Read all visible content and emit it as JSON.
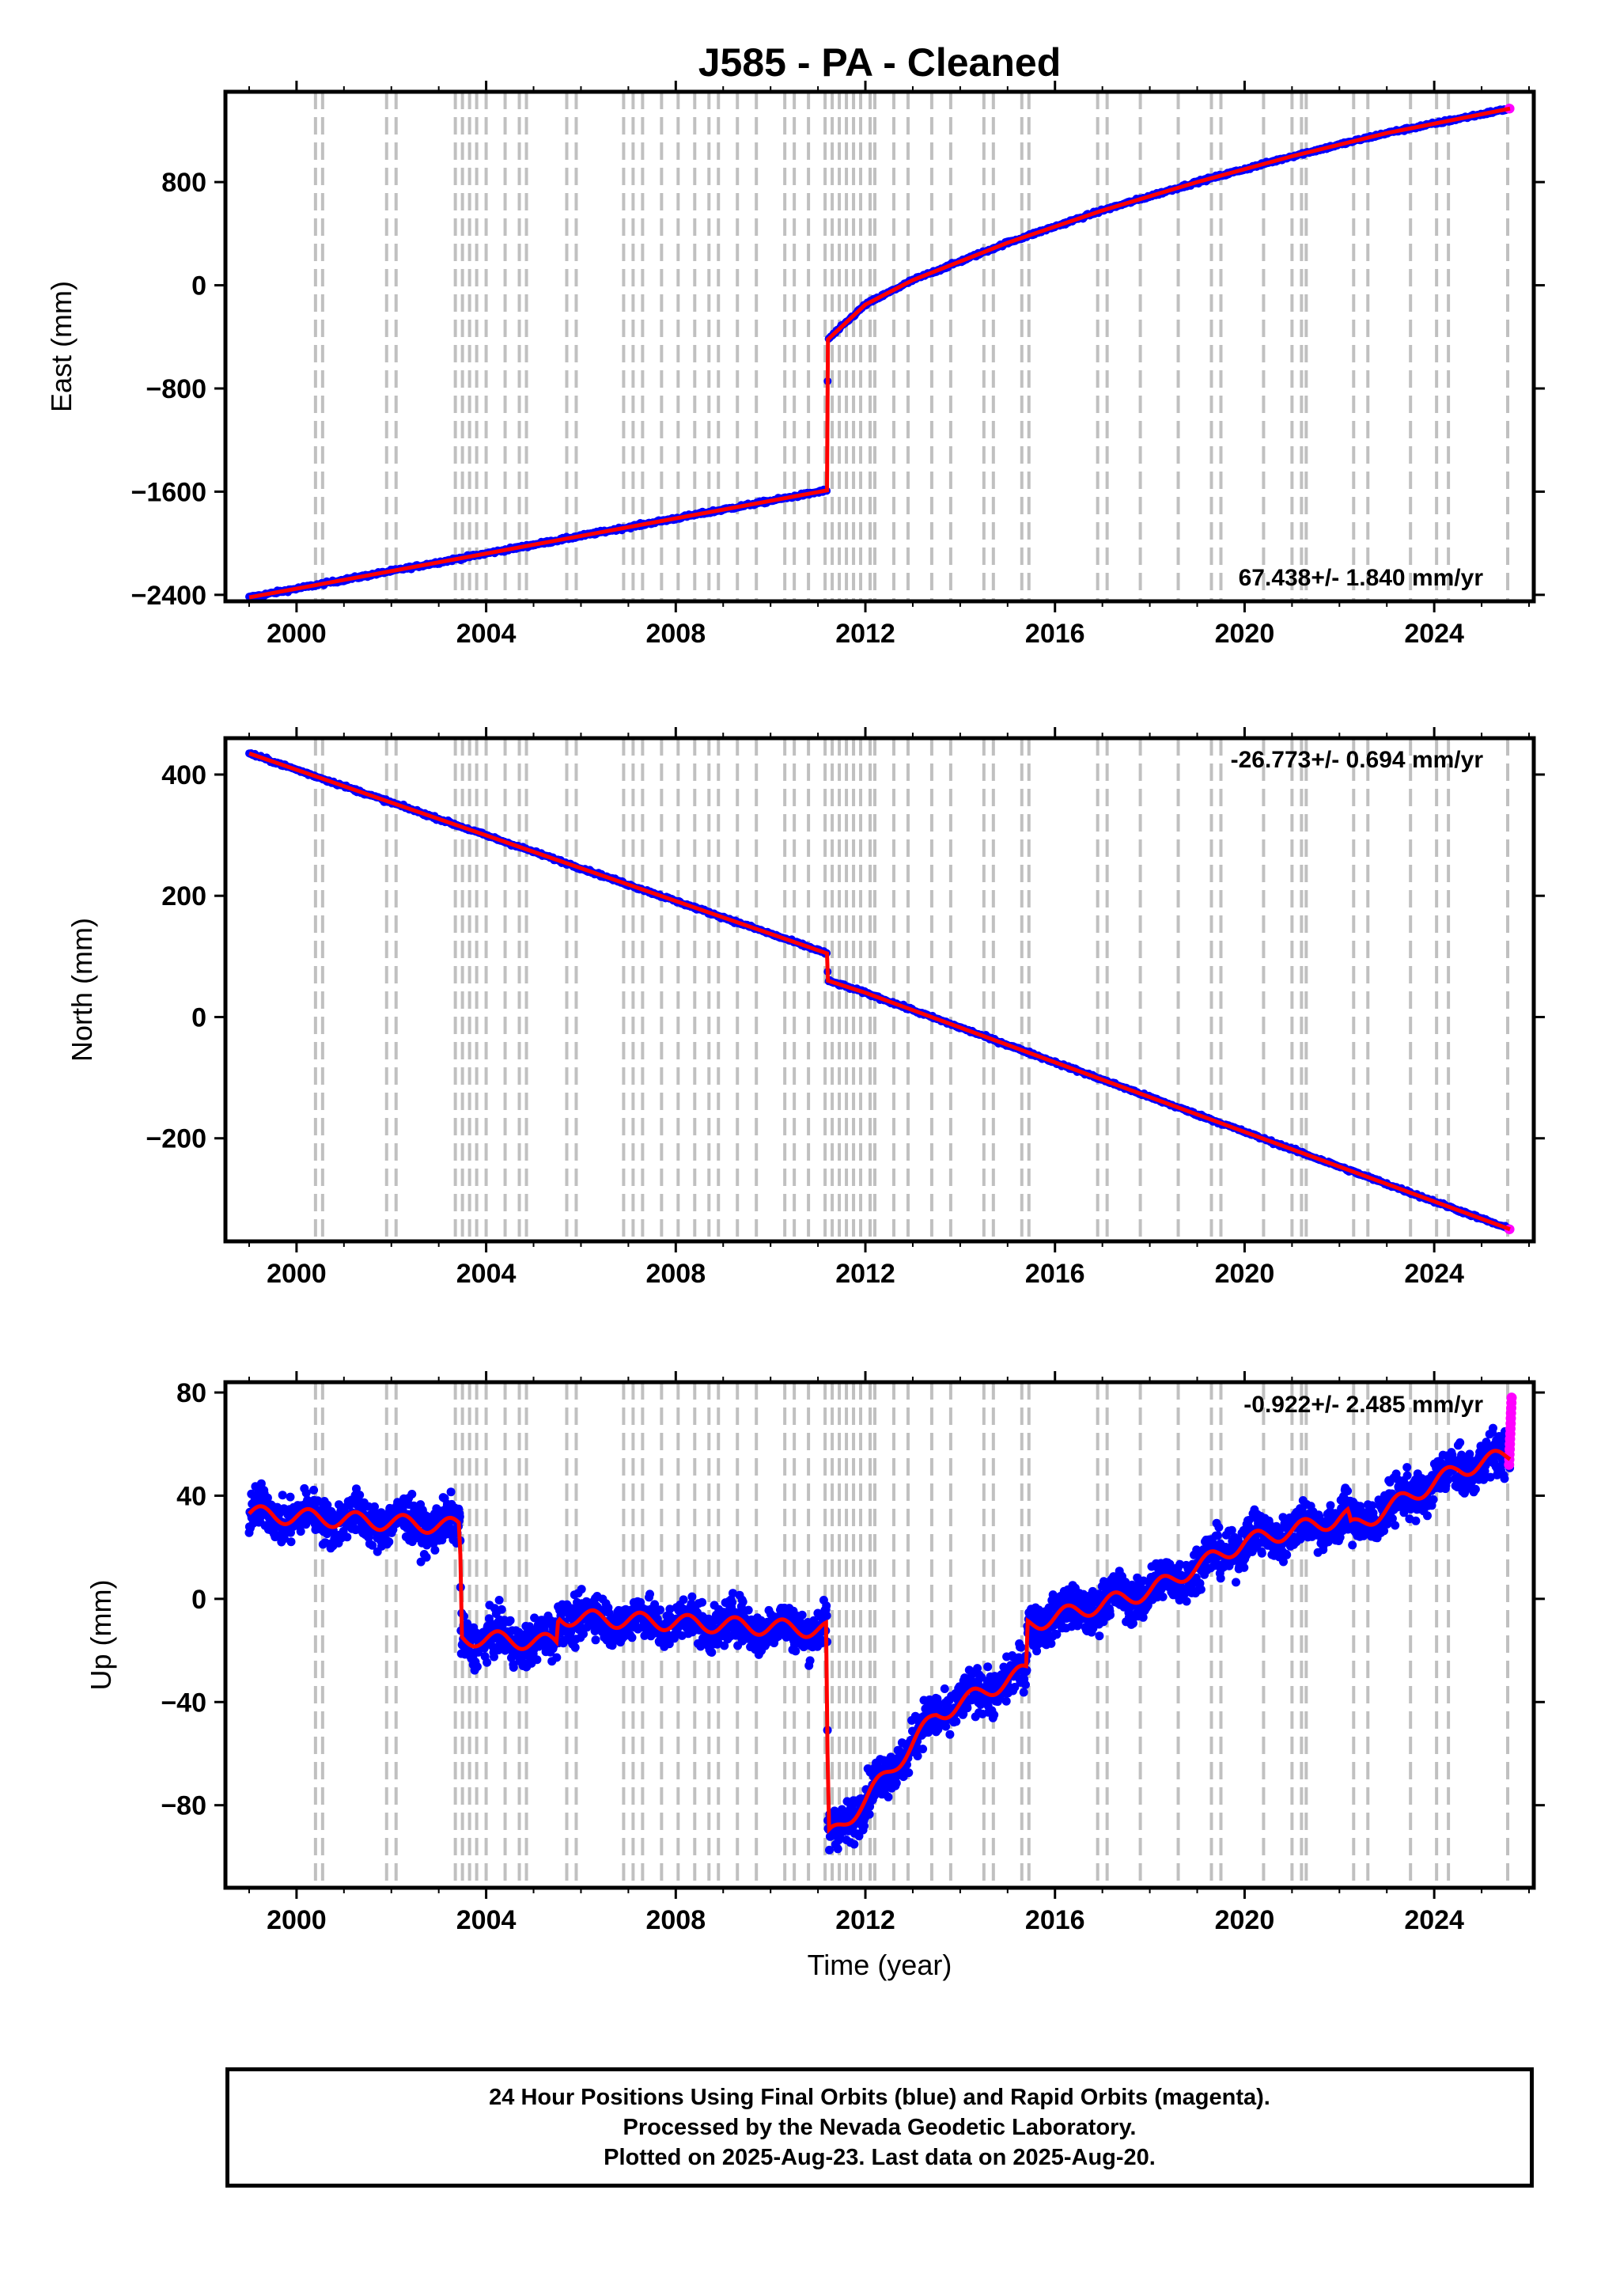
{
  "title": "J585  - PA - Cleaned",
  "colors": {
    "final": "#0000ff",
    "rapid": "#ff00ff",
    "model": "#ff0000",
    "steps": "#c0c0c0"
  },
  "chart_data": [
    {
      "type": "scatter",
      "panel": "east",
      "ylabel": "East (mm)",
      "xlim": [
        1998.5,
        2026.1
      ],
      "ylim": [
        -2450,
        1500
      ],
      "yticks": [
        -2400,
        -1600,
        -800,
        0,
        800
      ],
      "yticks_labels": [
        "−2400",
        "−1600",
        "−800",
        "0",
        "800"
      ],
      "xticks": [
        2000,
        2004,
        2008,
        2012,
        2016,
        2020,
        2024
      ],
      "xticks_labels": [
        "2000",
        "2004",
        "2008",
        "2012",
        "2016",
        "2020",
        "2024"
      ],
      "rate": "67.438+/- 1.840 mm/yr",
      "trend": {
        "x": [
          1999.0,
          2011.19,
          2011.21,
          2012.0,
          2013.0,
          2015.0,
          2017.0,
          2019.0,
          2021.0,
          2023.0,
          2025.6
        ],
        "y": [
          -2420,
          -1590,
          -420,
          -150,
          40,
          330,
          580,
          800,
          1000,
          1180,
          1370
        ]
      }
    },
    {
      "type": "scatter",
      "panel": "north",
      "ylabel": "North (mm)",
      "xlim": [
        1998.5,
        2026.1
      ],
      "ylim": [
        -370,
        460
      ],
      "yticks": [
        -200,
        0,
        200,
        400
      ],
      "yticks_labels": [
        "−200",
        "0",
        "200",
        "400"
      ],
      "xticks": [
        2000,
        2004,
        2008,
        2012,
        2016,
        2020,
        2024
      ],
      "xticks_labels": [
        "2000",
        "2004",
        "2008",
        "2012",
        "2016",
        "2020",
        "2024"
      ],
      "rate": "-26.773+/- 0.694 mm/yr",
      "trend": {
        "x": [
          1999.0,
          2011.19,
          2011.21,
          2012.0,
          2025.6
        ],
        "y": [
          435,
          105,
          60,
          40,
          -350
        ]
      }
    },
    {
      "type": "scatter",
      "panel": "up",
      "ylabel": "Up (mm)",
      "xlabel": "Time (year)",
      "xlim": [
        1998.5,
        2026.1
      ],
      "ylim": [
        -112,
        84
      ],
      "yticks": [
        -80,
        -40,
        0,
        40,
        80
      ],
      "yticks_labels": [
        "−80",
        "−40",
        "0",
        "40",
        "80"
      ],
      "xticks": [
        2000,
        2004,
        2008,
        2012,
        2016,
        2020,
        2024
      ],
      "xticks_labels": [
        "2000",
        "2004",
        "2008",
        "2012",
        "2016",
        "2020",
        "2024"
      ],
      "rate": "-0.922+/- 2.485 mm/yr",
      "trend": {
        "x": [
          1999.0,
          2003.45,
          2003.47,
          2005.5,
          2005.52,
          2011.19,
          2011.21,
          2012.0,
          2013.5,
          2015.4,
          2015.42,
          2018.0,
          2020.0,
          2022.2,
          2022.22,
          2024.5,
          2025.6
        ],
        "y": [
          33,
          28,
          -15,
          -17,
          -7,
          -12,
          -93,
          -78,
          -45,
          -28,
          -10,
          3,
          22,
          32,
          27,
          50,
          56
        ]
      }
    }
  ],
  "step_lines": [
    2000.4,
    2000.55,
    2001.9,
    2002.1,
    2003.35,
    2003.5,
    2003.65,
    2003.8,
    2004.0,
    2004.4,
    2004.7,
    2004.85,
    2005.7,
    2005.9,
    2006.9,
    2007.1,
    2007.3,
    2007.7,
    2008.05,
    2008.4,
    2008.7,
    2008.9,
    2009.3,
    2009.7,
    2010.3,
    2010.5,
    2010.8,
    2011.15,
    2011.3,
    2011.45,
    2011.6,
    2011.75,
    2011.9,
    2012.1,
    2012.2,
    2012.6,
    2012.9,
    2013.4,
    2013.8,
    2014.5,
    2014.7,
    2015.3,
    2015.45,
    2016.9,
    2017.1,
    2017.8,
    2018.6,
    2019.3,
    2019.5,
    2020.4,
    2021.0,
    2021.2,
    2021.3,
    2022.3,
    2022.6,
    2023.5,
    2024.05,
    2024.3,
    2025.55
  ],
  "footer": {
    "line1": "24 Hour Positions Using Final Orbits (blue) and Rapid Orbits (magenta).",
    "line2": "Processed by the Nevada Geodetic Laboratory.",
    "line3": "Plotted on 2025-Aug-23. Last data on 2025-Aug-20."
  }
}
